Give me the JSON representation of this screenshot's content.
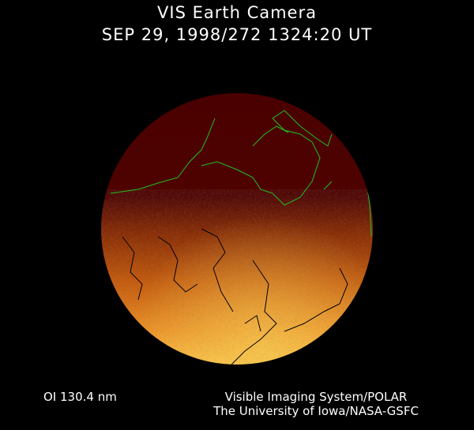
{
  "header": {
    "title": "VIS Earth Camera",
    "timestamp": "SEP 29, 1998/272 1324:20 UT"
  },
  "image": {
    "subject": "earth-disk-aurora",
    "colors": {
      "night": "#4a0000",
      "glow": "#f07a10",
      "bright": "#ffd040",
      "coastline_dayside": "#20c020",
      "coastline_nightside": "#000000"
    }
  },
  "footer": {
    "wavelength": "OI  130.4 nm",
    "credit_line1": "Visible Imaging System/POLAR",
    "credit_line2": "The University of Iowa/NASA-GSFC"
  }
}
